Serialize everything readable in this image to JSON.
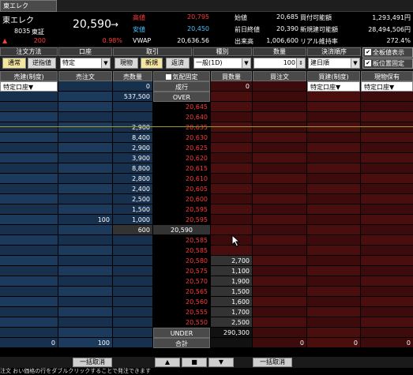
{
  "tab": {
    "label": "東エレク"
  },
  "quote": {
    "name": "東エレク",
    "code": "8035",
    "market": "東証",
    "price": "20,590",
    "arrow": "→",
    "change": "200",
    "change_pct": "0.98%",
    "change_arrow": "▲",
    "high_label": "高値",
    "high": "20,795",
    "low_label": "安値",
    "low": "20,450",
    "vwap_label": "VWAP",
    "vwap": "20,636.56",
    "open_label": "始値",
    "open": "20,685",
    "prev_label": "前日終値",
    "prev": "20,390",
    "volume_label": "出来高",
    "volume": "1,006,600",
    "buying_power_label": "買付可能額",
    "buying_power": "1,293,491円",
    "credit_label": "新規建可能額",
    "credit": "28,494,506円",
    "ratio_label": "リアル維持率",
    "ratio": "272.4%"
  },
  "order": {
    "method_label": "注文方法",
    "account_label": "口座",
    "trade_label": "取引",
    "type_label": "種別",
    "qty_label": "数量",
    "settle_label": "決済順序",
    "btn_market": "通常",
    "btn_limit": "逆指値",
    "account_value": "特定",
    "btn_cash": "現物",
    "btn_new": "新規",
    "btn_close": "返済",
    "type_value": "一般(1D)",
    "qty_value": "100",
    "settle_value": "建日順",
    "chk_all_price": "全板値表示",
    "chk_fixed": "板位置固定"
  },
  "grid": {
    "headers": [
      "売建(制度)",
      "売注文",
      "売数量",
      "気配値",
      "買数量",
      "買注文",
      "買建(制度)",
      "現物保有"
    ],
    "sub_sell": "特定口座▼",
    "sub_buy": "特定口座▼",
    "sub_hold": "特定口座▼",
    "chk_ki": "気配固定",
    "market_row": {
      "sell_qty": "0",
      "price": "成行",
      "buy_qty": "0"
    },
    "over_row": {
      "sell_qty": "537,500",
      "price": "OVER"
    },
    "rows": [
      {
        "price": "20,645",
        "sell": "",
        "buy": "",
        "sellorder": ""
      },
      {
        "price": "20,640",
        "sell": "",
        "buy": "",
        "sellorder": ""
      },
      {
        "price": "20,635",
        "sell": "2,900",
        "buy": "",
        "sellorder": ""
      },
      {
        "price": "20,630",
        "sell": "8,400",
        "buy": "",
        "sellorder": ""
      },
      {
        "price": "20,625",
        "sell": "2,900",
        "buy": "",
        "sellorder": ""
      },
      {
        "price": "20,620",
        "sell": "3,900",
        "buy": "",
        "sellorder": ""
      },
      {
        "price": "20,615",
        "sell": "8,800",
        "buy": "",
        "sellorder": ""
      },
      {
        "price": "20,610",
        "sell": "2,800",
        "buy": "",
        "sellorder": ""
      },
      {
        "price": "20,605",
        "sell": "2,400",
        "buy": "",
        "sellorder": ""
      },
      {
        "price": "20,600",
        "sell": "2,500",
        "buy": "",
        "sellorder": ""
      },
      {
        "price": "20,595",
        "sell": "1,500",
        "buy": "",
        "sellorder": ""
      },
      {
        "price": "20,595",
        "sell": "1,000",
        "buy": "",
        "sellorder": "100"
      },
      {
        "price": "20,590",
        "sell": "600",
        "buy": "",
        "sellorder": ""
      },
      {
        "price": "20,585",
        "sell": "",
        "buy": "",
        "sellorder": ""
      },
      {
        "price": "20,585",
        "sell": "",
        "buy": "",
        "sellorder": ""
      },
      {
        "price": "20,580",
        "sell": "",
        "buy": "2,700",
        "sellorder": ""
      },
      {
        "price": "20,575",
        "sell": "",
        "buy": "1,100",
        "sellorder": ""
      },
      {
        "price": "20,570",
        "sell": "",
        "buy": "1,900",
        "sellorder": ""
      },
      {
        "price": "20,565",
        "sell": "",
        "buy": "1,500",
        "sellorder": ""
      },
      {
        "price": "20,560",
        "sell": "",
        "buy": "1,600",
        "sellorder": ""
      },
      {
        "price": "20,555",
        "sell": "",
        "buy": "1,700",
        "sellorder": ""
      },
      {
        "price": "20,550",
        "sell": "",
        "buy": "2,500",
        "sellorder": ""
      }
    ],
    "under_row": {
      "price": "UNDER",
      "buy_qty": "290,300"
    },
    "total_row": {
      "sell_seido": "0",
      "sell_order": "100",
      "price": "合計",
      "buy_order": "0",
      "buy_seido": "0",
      "hold": "0"
    }
  },
  "bottom": {
    "cancel_sell": "一括取消",
    "up": "▲",
    "stop": "■",
    "down": "▼",
    "cancel_buy": "一括取消"
  },
  "note": "注文 おい価格の行をダブルクリックすることで発注できます"
}
